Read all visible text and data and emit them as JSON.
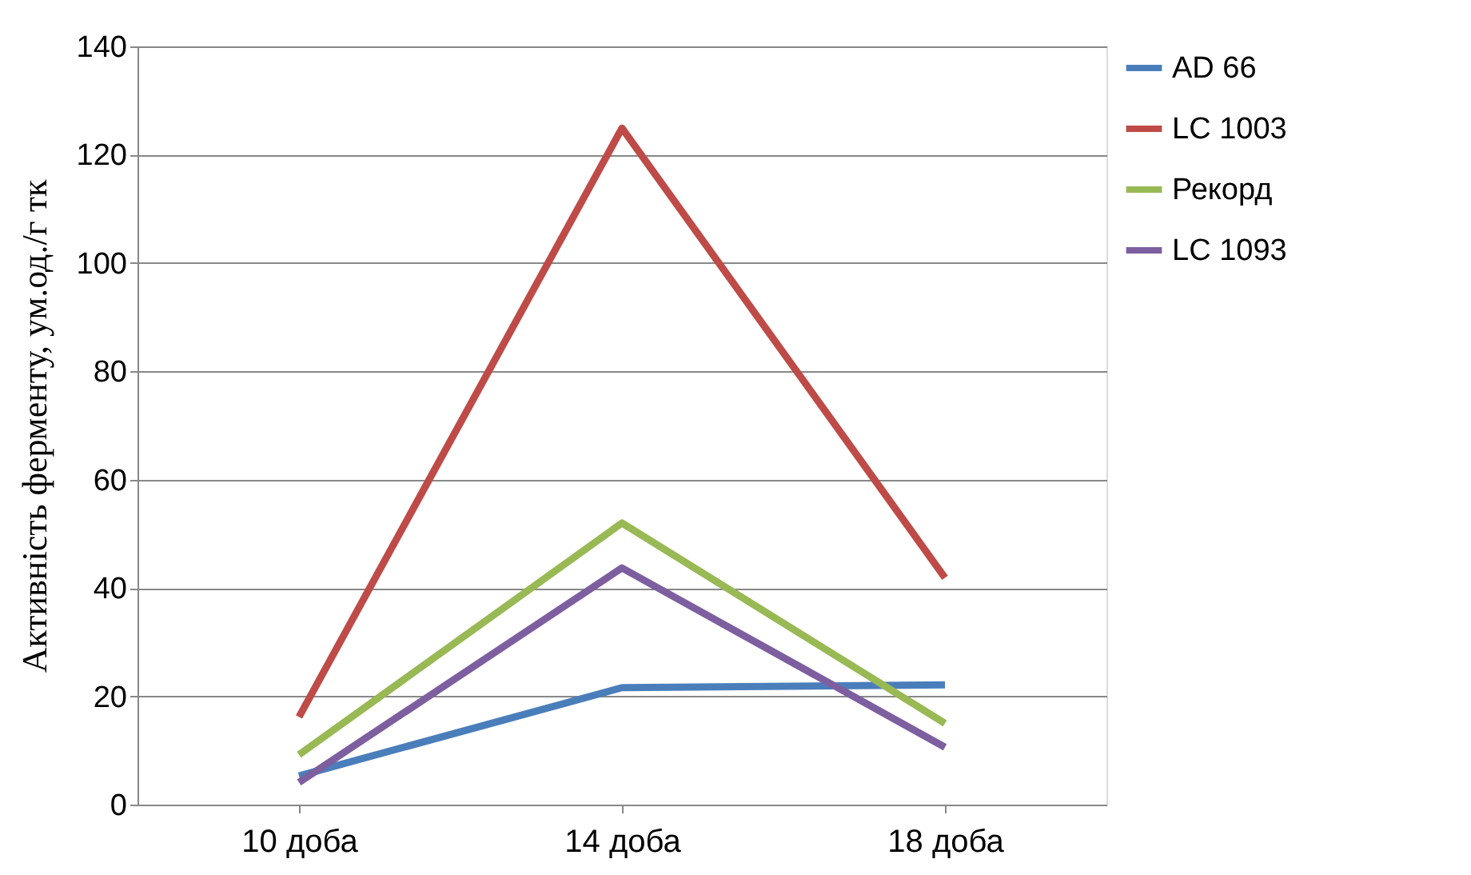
{
  "chart_data": {
    "type": "line",
    "ylabel": "Активність ферменту, ум.од./г тк",
    "categories": [
      "10 доба",
      "14 доба",
      "18 доба"
    ],
    "series": [
      {
        "name": "AD 66",
        "color": "#4a7ebb",
        "values": [
          5.3,
          21.6,
          22.1
        ]
      },
      {
        "name": "LC 1003",
        "color": "#be4b48",
        "values": [
          16.2,
          124.9,
          41.9
        ]
      },
      {
        "name": "Рекорд",
        "color": "#98b954",
        "values": [
          9.2,
          52,
          15
        ]
      },
      {
        "name": "LC 1093",
        "color": "#7d5fa0",
        "values": [
          4.1,
          43.7,
          10.6
        ]
      }
    ],
    "ylim": [
      0,
      140
    ],
    "yticks": [
      0,
      20,
      40,
      60,
      80,
      100,
      120,
      140
    ],
    "grid": "y",
    "legend": "right",
    "marker": "none",
    "line_style": "solid"
  }
}
